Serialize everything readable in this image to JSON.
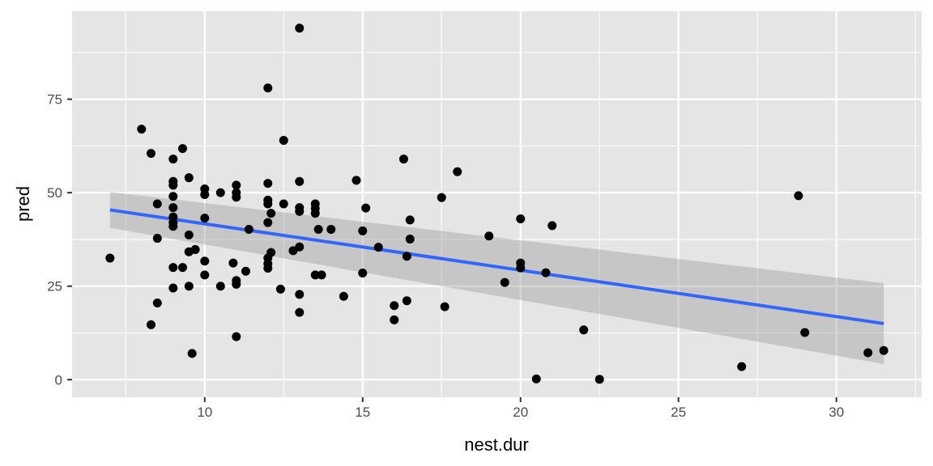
{
  "chart_data": {
    "type": "scatter",
    "title": "",
    "xlabel": "nest.dur",
    "ylabel": "pred",
    "xlim": [
      5.8,
      32.7
    ],
    "ylim": [
      -4.7,
      98.5
    ],
    "x_ticks": [
      10,
      15,
      20,
      25,
      30
    ],
    "x_tick_labels": [
      "10",
      "15",
      "20",
      "25",
      "30"
    ],
    "y_ticks": [
      0,
      25,
      50,
      75
    ],
    "y_tick_labels": [
      "0",
      "25",
      "50",
      "75"
    ],
    "grid": true,
    "legend": "none",
    "colors": {
      "panel": "#e5e5e5",
      "grid": "#ffffff",
      "points": "#000000",
      "fit_line": "#3366ff",
      "ribbon": "#999999"
    },
    "points": [
      [
        7.0,
        32.5
      ],
      [
        8.0,
        67.0
      ],
      [
        8.3,
        60.5
      ],
      [
        8.3,
        14.7
      ],
      [
        8.5,
        47.0
      ],
      [
        8.5,
        37.8
      ],
      [
        8.5,
        20.5
      ],
      [
        9.0,
        59.0
      ],
      [
        9.0,
        53.0
      ],
      [
        9.0,
        52.0
      ],
      [
        9.0,
        49.0
      ],
      [
        9.0,
        46.0
      ],
      [
        9.0,
        43.5
      ],
      [
        9.0,
        42.0
      ],
      [
        9.0,
        41.0
      ],
      [
        9.0,
        30.0
      ],
      [
        9.0,
        24.5
      ],
      [
        9.3,
        61.8
      ],
      [
        9.3,
        30.0
      ],
      [
        9.5,
        54.0
      ],
      [
        9.5,
        38.7
      ],
      [
        9.5,
        34.2
      ],
      [
        9.5,
        25.0
      ],
      [
        9.6,
        7.0
      ],
      [
        9.7,
        34.8
      ],
      [
        10.0,
        51.0
      ],
      [
        10.0,
        49.5
      ],
      [
        10.0,
        43.2
      ],
      [
        10.0,
        31.7
      ],
      [
        10.0,
        28.0
      ],
      [
        10.5,
        50.0
      ],
      [
        10.5,
        25.0
      ],
      [
        10.9,
        31.2
      ],
      [
        11.0,
        52.0
      ],
      [
        11.0,
        50.0
      ],
      [
        11.0,
        48.8
      ],
      [
        11.0,
        26.5
      ],
      [
        11.0,
        25.5
      ],
      [
        11.0,
        11.5
      ],
      [
        11.3,
        29.0
      ],
      [
        11.4,
        40.2
      ],
      [
        12.0,
        78.0
      ],
      [
        12.0,
        52.5
      ],
      [
        12.0,
        48.0
      ],
      [
        12.0,
        47.0
      ],
      [
        12.0,
        42.0
      ],
      [
        12.0,
        32.5
      ],
      [
        12.0,
        31.0
      ],
      [
        12.0,
        29.8
      ],
      [
        12.1,
        44.5
      ],
      [
        12.1,
        34.0
      ],
      [
        12.4,
        24.2
      ],
      [
        12.5,
        64.0
      ],
      [
        12.5,
        47.0
      ],
      [
        12.8,
        34.5
      ],
      [
        13.0,
        94.0
      ],
      [
        13.0,
        53.0
      ],
      [
        13.0,
        46.0
      ],
      [
        13.0,
        45.0
      ],
      [
        13.0,
        35.5
      ],
      [
        13.0,
        22.8
      ],
      [
        13.0,
        18.0
      ],
      [
        13.5,
        47.0
      ],
      [
        13.5,
        45.8
      ],
      [
        13.5,
        44.5
      ],
      [
        13.5,
        28.0
      ],
      [
        13.6,
        40.2
      ],
      [
        13.7,
        28.0
      ],
      [
        14.0,
        40.2
      ],
      [
        14.4,
        22.3
      ],
      [
        14.8,
        53.3
      ],
      [
        15.0,
        39.8
      ],
      [
        15.0,
        28.5
      ],
      [
        15.1,
        45.9
      ],
      [
        15.5,
        35.4
      ],
      [
        16.0,
        19.8
      ],
      [
        16.0,
        16.0
      ],
      [
        16.3,
        59.0
      ],
      [
        16.4,
        33.0
      ],
      [
        16.4,
        21.1
      ],
      [
        16.5,
        42.7
      ],
      [
        16.5,
        37.6
      ],
      [
        17.5,
        48.7
      ],
      [
        17.6,
        19.5
      ],
      [
        18.0,
        55.6
      ],
      [
        19.0,
        38.4
      ],
      [
        19.5,
        26.0
      ],
      [
        20.0,
        43.0
      ],
      [
        20.0,
        31.2
      ],
      [
        20.0,
        29.9
      ],
      [
        20.5,
        0.2
      ],
      [
        20.8,
        28.6
      ],
      [
        21.0,
        41.2
      ],
      [
        22.0,
        13.3
      ],
      [
        22.5,
        0.1
      ],
      [
        27.0,
        3.5
      ],
      [
        28.8,
        49.2
      ],
      [
        29.0,
        12.6
      ],
      [
        31.0,
        7.2
      ],
      [
        31.5,
        7.8
      ]
    ],
    "fit": {
      "method": "lm",
      "x": [
        7.0,
        31.5
      ],
      "y": [
        45.4,
        15.0
      ],
      "ribbon_lower": [
        40.6,
        4.2
      ],
      "ribbon_upper": [
        50.2,
        25.8
      ]
    }
  }
}
